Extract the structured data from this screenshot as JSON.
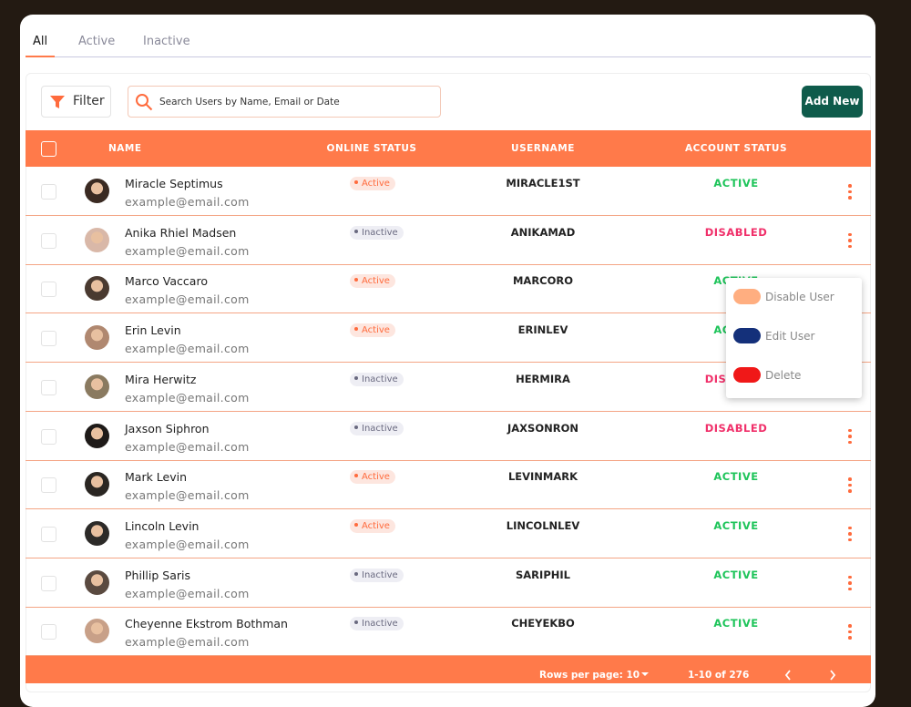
{
  "tabs": [
    "All",
    "Active",
    "Inactive"
  ],
  "toolbar": {
    "filter": "Filter",
    "search_placeholder": "Search Users by Name, Email or Date",
    "add_new": "Add New"
  },
  "table": {
    "headers": [
      "NAME",
      "ONLINE STATUS",
      "USERNAME",
      "ACCOUNT STATUS"
    ],
    "rows": [
      {
        "name": "Miracle Septimus",
        "email": "example@email.com",
        "online": "Active",
        "username": "MIRACLE1ST",
        "account": "ACTIVE"
      },
      {
        "name": "Anika Rhiel Madsen",
        "email": "example@email.com",
        "online": "Inactive",
        "username": "ANIKAMAD",
        "account": "DISABLED"
      },
      {
        "name": "Marco Vaccaro",
        "email": "example@email.com",
        "online": "Active",
        "username": "MARCORO",
        "account": "ACTIVE"
      },
      {
        "name": "Erin Levin",
        "email": "example@email.com",
        "online": "Active",
        "username": "ERINLEV",
        "account": "ACTIVE"
      },
      {
        "name": "Mira Herwitz",
        "email": "example@email.com",
        "online": "Inactive",
        "username": "HERMIRA",
        "account": "DISABLED"
      },
      {
        "name": "Jaxson Siphron",
        "email": "example@email.com",
        "online": "Inactive",
        "username": "JAXSONRON",
        "account": "DISABLED"
      },
      {
        "name": "Mark Levin",
        "email": "example@email.com",
        "online": "Active",
        "username": "LEVINMARK",
        "account": "ACTIVE"
      },
      {
        "name": "Lincoln Levin",
        "email": "example@email.com",
        "online": "Active",
        "username": "LINCOLNLEV",
        "account": "ACTIVE"
      },
      {
        "name": "Phillip Saris",
        "email": "example@email.com",
        "online": "Inactive",
        "username": "SARIPHIL",
        "account": "ACTIVE"
      },
      {
        "name": "Cheyenne Ekstrom Bothman",
        "email": "example@email.com",
        "online": "Inactive",
        "username": "CHEYEKBO",
        "account": "ACTIVE"
      }
    ]
  },
  "menu": [
    "Disable User",
    "Edit User",
    "Delete"
  ],
  "footer": {
    "rows_per_page": "Rows per page: 10",
    "range": "1-10 of 276"
  }
}
